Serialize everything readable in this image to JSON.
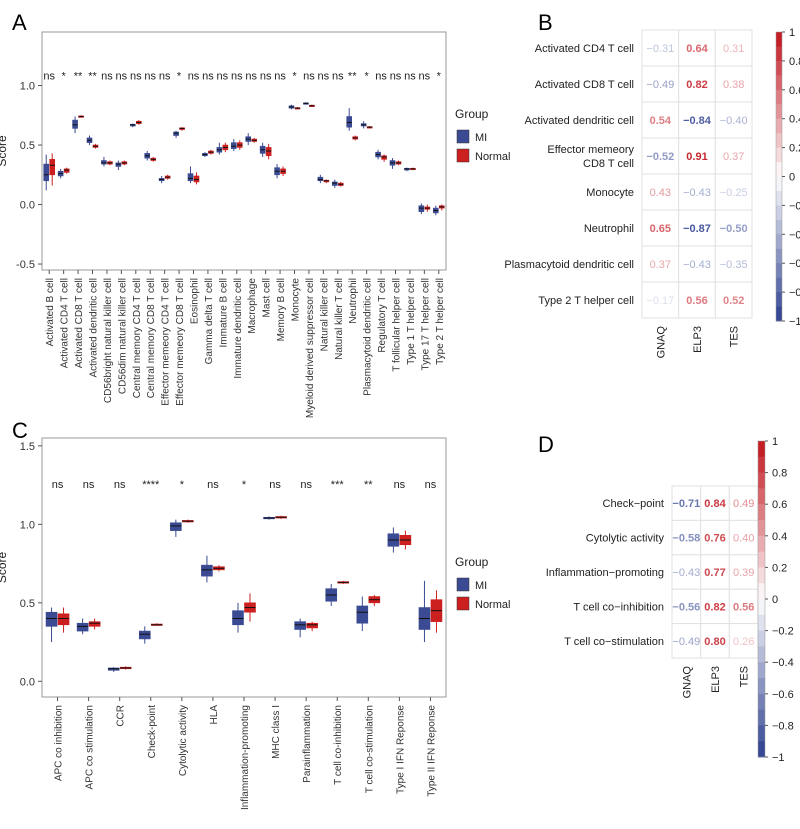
{
  "panel_labels": {
    "a": "A",
    "b": "B",
    "c": "C",
    "d": "D"
  },
  "colors": {
    "mi": "#3b4b93",
    "normal": "#cc1f1f",
    "neg": "#2c3f8f",
    "pos": "#c1121c",
    "zero": "#ffffff",
    "panel_border": "#999999"
  },
  "chart_data": [
    {
      "id": "A",
      "type": "boxplot",
      "ylabel": "Score",
      "ylim": [
        -0.55,
        1.45
      ],
      "yticks": [
        "-0.5",
        "0.0",
        "0.5",
        "1.0"
      ],
      "ytick_values": [
        -0.5,
        0.0,
        0.5,
        1.0
      ],
      "legend": {
        "title": "Group",
        "items": [
          "MI",
          "Normal"
        ],
        "placement": "right"
      },
      "categories": [
        "Activated B cell",
        "Activated CD4 T cell",
        "Activated CD8 T cell",
        "Activated dendritic cell",
        "CD56bright natural killer cell",
        "CD56dim natural killer cell",
        "Central memory CD4 T cell",
        "Central memory CD8 T cell",
        "Effector memeory CD4 T cell",
        "Effector memeory CD8 T cell",
        "Eosinophil",
        "Gamma delta T cell",
        "Immature  B cell",
        "Immature dendritic cell",
        "Macrophage",
        "Mast cell",
        "Memory B cell",
        "Monocyte",
        "Myeloid derived suppressor cell",
        "Natural killer cell",
        "Natural killer T cell",
        "Neutrophil",
        "Plasmacytoid dendritic cell",
        "Regulatory T cell",
        "T follicular helper cell",
        "Type 1 T helper cell",
        "Type 17 T helper cell",
        "Type 2 T helper cell"
      ],
      "significance": [
        "ns",
        "*",
        "**",
        "**",
        "ns",
        "ns",
        "ns",
        "ns",
        "ns",
        "*",
        "ns",
        "ns",
        "ns",
        "ns",
        "ns",
        "ns",
        "ns",
        "*",
        "ns",
        "ns",
        "ns",
        "**",
        "*",
        "ns",
        "ns",
        "ns",
        "ns",
        "*"
      ],
      "series": [
        {
          "name": "MI",
          "boxes": [
            [
              0.12,
              0.2,
              0.25,
              0.34,
              0.42
            ],
            [
              0.22,
              0.24,
              0.26,
              0.28,
              0.3
            ],
            [
              0.6,
              0.64,
              0.67,
              0.71,
              0.74
            ],
            [
              0.5,
              0.52,
              0.54,
              0.56,
              0.58
            ],
            [
              0.32,
              0.34,
              0.35,
              0.37,
              0.4
            ],
            [
              0.29,
              0.32,
              0.34,
              0.35,
              0.37
            ],
            [
              0.65,
              0.66,
              0.67,
              0.675,
              0.68
            ],
            [
              0.37,
              0.39,
              0.41,
              0.43,
              0.45
            ],
            [
              0.18,
              0.2,
              0.21,
              0.22,
              0.24
            ],
            [
              0.56,
              0.58,
              0.6,
              0.61,
              0.62
            ],
            [
              0.18,
              0.2,
              0.22,
              0.26,
              0.32
            ],
            [
              0.4,
              0.41,
              0.42,
              0.43,
              0.44
            ],
            [
              0.42,
              0.44,
              0.46,
              0.48,
              0.52
            ],
            [
              0.45,
              0.47,
              0.49,
              0.52,
              0.55
            ],
            [
              0.5,
              0.53,
              0.55,
              0.57,
              0.6
            ],
            [
              0.4,
              0.43,
              0.46,
              0.49,
              0.52
            ],
            [
              0.22,
              0.25,
              0.28,
              0.31,
              0.34
            ],
            [
              0.8,
              0.81,
              0.82,
              0.83,
              0.84
            ],
            [
              0.84,
              0.845,
              0.85,
              0.855,
              0.86
            ],
            [
              0.18,
              0.2,
              0.21,
              0.23,
              0.25
            ],
            [
              0.14,
              0.16,
              0.18,
              0.19,
              0.21
            ],
            [
              0.62,
              0.65,
              0.69,
              0.74,
              0.81
            ],
            [
              0.64,
              0.66,
              0.67,
              0.68,
              0.7
            ],
            [
              0.38,
              0.4,
              0.42,
              0.44,
              0.46
            ],
            [
              0.3,
              0.33,
              0.35,
              0.37,
              0.39
            ],
            [
              0.28,
              0.29,
              0.3,
              0.305,
              0.31
            ],
            [
              -0.08,
              -0.06,
              -0.03,
              -0.01,
              0.01
            ],
            [
              -0.09,
              -0.07,
              -0.05,
              -0.03,
              -0.01
            ]
          ]
        },
        {
          "name": "Normal",
          "boxes": [
            [
              0.16,
              0.25,
              0.33,
              0.38,
              0.43
            ],
            [
              0.26,
              0.27,
              0.29,
              0.3,
              0.31
            ],
            [
              0.73,
              0.735,
              0.74,
              0.745,
              0.75
            ],
            [
              0.47,
              0.48,
              0.49,
              0.5,
              0.51
            ],
            [
              0.33,
              0.34,
              0.35,
              0.36,
              0.37
            ],
            [
              0.33,
              0.34,
              0.35,
              0.36,
              0.37
            ],
            [
              0.67,
              0.68,
              0.69,
              0.7,
              0.71
            ],
            [
              0.36,
              0.37,
              0.38,
              0.39,
              0.4
            ],
            [
              0.21,
              0.22,
              0.23,
              0.24,
              0.25
            ],
            [
              0.62,
              0.63,
              0.64,
              0.645,
              0.65
            ],
            [
              0.17,
              0.19,
              0.21,
              0.24,
              0.27
            ],
            [
              0.42,
              0.43,
              0.44,
              0.45,
              0.46
            ],
            [
              0.44,
              0.46,
              0.48,
              0.5,
              0.52
            ],
            [
              0.46,
              0.48,
              0.5,
              0.52,
              0.54
            ],
            [
              0.52,
              0.53,
              0.54,
              0.55,
              0.56
            ],
            [
              0.38,
              0.41,
              0.45,
              0.48,
              0.51
            ],
            [
              0.24,
              0.26,
              0.28,
              0.3,
              0.32
            ],
            [
              0.8,
              0.805,
              0.81,
              0.815,
              0.82
            ],
            [
              0.82,
              0.825,
              0.83,
              0.835,
              0.84
            ],
            [
              0.18,
              0.19,
              0.2,
              0.205,
              0.21
            ],
            [
              0.15,
              0.16,
              0.17,
              0.18,
              0.19
            ],
            [
              0.54,
              0.55,
              0.56,
              0.57,
              0.58
            ],
            [
              0.64,
              0.645,
              0.65,
              0.655,
              0.66
            ],
            [
              0.36,
              0.38,
              0.4,
              0.41,
              0.42
            ],
            [
              0.33,
              0.34,
              0.35,
              0.36,
              0.37
            ],
            [
              0.29,
              0.295,
              0.3,
              0.305,
              0.31
            ],
            [
              -0.06,
              -0.04,
              -0.03,
              -0.02,
              0.0
            ],
            [
              -0.05,
              -0.03,
              -0.02,
              -0.01,
              0.0
            ]
          ]
        }
      ]
    },
    {
      "id": "B",
      "type": "heatmap",
      "rows": [
        "Activated CD4 T cell",
        "Activated CD8 T cell",
        "Activated dendritic cell",
        "Effector memeory|CD8 T cell",
        "Monocyte",
        "Neutrophil",
        "Plasmacytoid dendritic cell",
        "Type 2 T helper cell"
      ],
      "cols": [
        "GNAQ",
        "ELP3",
        "TES"
      ],
      "values": [
        [
          -0.31,
          0.64,
          0.31
        ],
        [
          -0.49,
          0.82,
          0.38
        ],
        [
          0.54,
          -0.84,
          -0.4
        ],
        [
          -0.52,
          0.91,
          0.37
        ],
        [
          0.43,
          -0.43,
          -0.25
        ],
        [
          0.65,
          -0.87,
          -0.5
        ],
        [
          0.37,
          -0.43,
          -0.35
        ],
        [
          -0.17,
          0.56,
          0.52
        ]
      ],
      "labels": [
        [
          "−0.31",
          "0.64",
          "0.31"
        ],
        [
          "−0.49",
          "0.82",
          "0.38"
        ],
        [
          "0.54",
          "−0.84",
          "−0.40"
        ],
        [
          "−0.52",
          "0.91",
          "0.37"
        ],
        [
          "0.43",
          "−0.43",
          "−0.25"
        ],
        [
          "0.65",
          "−0.87",
          "−0.50"
        ],
        [
          "0.37",
          "−0.43",
          "−0.35"
        ],
        [
          "−0.17",
          "0.56",
          "0.52"
        ]
      ],
      "colorbar": {
        "range": [
          -1,
          1
        ],
        "ticks": [
          "1",
          "0.8",
          "0.6",
          "0.4",
          "0.2",
          "0",
          "−0.2",
          "−0.4",
          "−0.6",
          "−0.8",
          "−1"
        ],
        "tick_values": [
          1,
          0.8,
          0.6,
          0.4,
          0.2,
          0,
          -0.2,
          -0.4,
          -0.6,
          -0.8,
          -1
        ]
      }
    },
    {
      "id": "C",
      "type": "boxplot",
      "ylabel": "Score",
      "ylim": [
        -0.1,
        1.55
      ],
      "yticks": [
        "0.0",
        "0.5",
        "1.0",
        "1.5"
      ],
      "ytick_values": [
        0.0,
        0.5,
        1.0,
        1.5
      ],
      "legend": {
        "title": "Group",
        "items": [
          "MI",
          "Normal"
        ],
        "placement": "right"
      },
      "categories": [
        "APC co inhibition",
        "APC co stimulation",
        "CCR",
        "Check-point",
        "Cytolytic activity",
        "HLA",
        "Inflammation-promoting",
        "MHC class I",
        "Parainflammation",
        "T cell co-inhibition",
        "T cell co-stimulation",
        "Type I IFN Reponse",
        "Type II IFN Reponse"
      ],
      "significance": [
        "ns",
        "ns",
        "ns",
        "****",
        "*",
        "ns",
        "*",
        "ns",
        "ns",
        "***",
        "**",
        "ns",
        "ns"
      ],
      "series": [
        {
          "name": "MI",
          "boxes": [
            [
              0.25,
              0.35,
              0.4,
              0.44,
              0.47
            ],
            [
              0.3,
              0.32,
              0.35,
              0.37,
              0.4
            ],
            [
              0.06,
              0.07,
              0.08,
              0.085,
              0.09
            ],
            [
              0.24,
              0.27,
              0.3,
              0.32,
              0.35
            ],
            [
              0.92,
              0.96,
              0.99,
              1.01,
              1.03
            ],
            [
              0.63,
              0.67,
              0.71,
              0.74,
              0.8
            ],
            [
              0.31,
              0.36,
              0.4,
              0.45,
              0.5
            ],
            [
              1.03,
              1.035,
              1.04,
              1.045,
              1.05
            ],
            [
              0.28,
              0.33,
              0.36,
              0.38,
              0.4
            ],
            [
              0.48,
              0.51,
              0.55,
              0.59,
              0.62
            ],
            [
              0.32,
              0.37,
              0.44,
              0.48,
              0.54
            ],
            [
              0.82,
              0.86,
              0.9,
              0.94,
              0.98
            ],
            [
              0.25,
              0.33,
              0.4,
              0.47,
              0.64
            ]
          ]
        },
        {
          "name": "Normal",
          "boxes": [
            [
              0.31,
              0.36,
              0.4,
              0.43,
              0.47
            ],
            [
              0.33,
              0.35,
              0.37,
              0.38,
              0.4
            ],
            [
              0.075,
              0.08,
              0.085,
              0.09,
              0.095
            ],
            [
              0.355,
              0.36,
              0.36,
              0.365,
              0.37
            ],
            [
              1.01,
              1.015,
              1.02,
              1.025,
              1.03
            ],
            [
              0.7,
              0.71,
              0.72,
              0.73,
              0.74
            ],
            [
              0.38,
              0.44,
              0.47,
              0.5,
              0.56
            ],
            [
              1.035,
              1.04,
              1.045,
              1.05,
              1.055
            ],
            [
              0.32,
              0.34,
              0.36,
              0.37,
              0.38
            ],
            [
              0.62,
              0.625,
              0.63,
              0.635,
              0.64
            ],
            [
              0.48,
              0.5,
              0.52,
              0.54,
              0.55
            ],
            [
              0.84,
              0.87,
              0.9,
              0.93,
              0.96
            ],
            [
              0.31,
              0.38,
              0.45,
              0.52,
              0.58
            ]
          ]
        }
      ]
    },
    {
      "id": "D",
      "type": "heatmap",
      "rows": [
        "Check−point",
        "Cytolytic activity",
        "Inflammation−promoting",
        "T cell co−inhibition",
        "T cell co−stimulation"
      ],
      "cols": [
        "GNAQ",
        "ELP3",
        "TES"
      ],
      "values": [
        [
          -0.71,
          0.84,
          0.49
        ],
        [
          -0.58,
          0.76,
          0.4
        ],
        [
          -0.43,
          0.77,
          0.39
        ],
        [
          -0.56,
          0.82,
          0.56
        ],
        [
          -0.49,
          0.8,
          0.26
        ]
      ],
      "labels": [
        [
          "−0.71",
          "0.84",
          "0.49"
        ],
        [
          "−0.58",
          "0.76",
          "0.40"
        ],
        [
          "−0.43",
          "0.77",
          "0.39"
        ],
        [
          "−0.56",
          "0.82",
          "0.56"
        ],
        [
          "−0.49",
          "0.80",
          "0.26"
        ]
      ],
      "colorbar": {
        "range": [
          -1,
          1
        ],
        "ticks": [
          "1",
          "0.8",
          "0.6",
          "0.4",
          "0.2",
          "0",
          "−0.2",
          "−0.4",
          "−0.6",
          "−0.8",
          "−1"
        ],
        "tick_values": [
          1,
          0.8,
          0.6,
          0.4,
          0.2,
          0,
          -0.2,
          -0.4,
          -0.6,
          -0.8,
          -1
        ]
      }
    }
  ]
}
